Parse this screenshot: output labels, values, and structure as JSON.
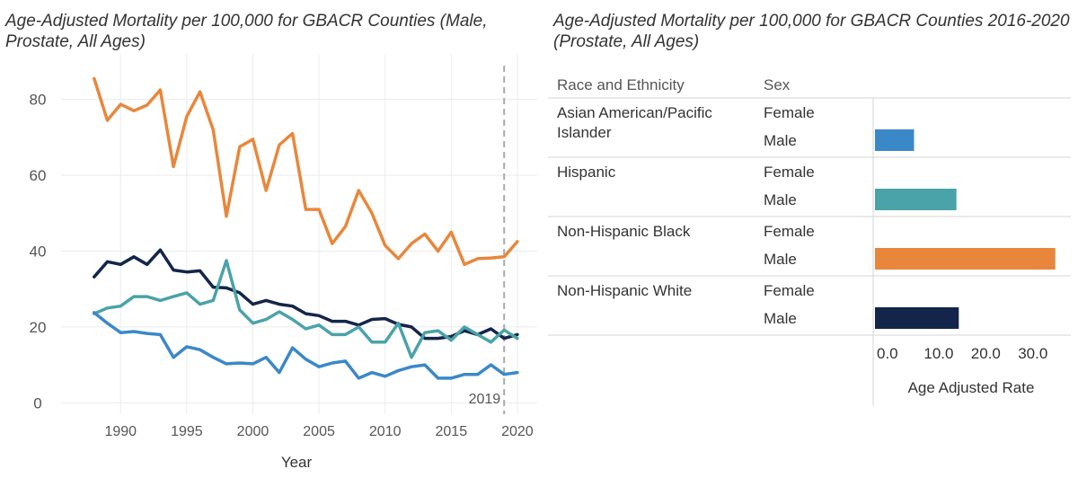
{
  "colors": {
    "asian_pi": "#3b88c8",
    "hispanic": "#4aa3a8",
    "black": "#e8873c",
    "white": "#13254a",
    "marker": "#aaaaaa",
    "grid": "#ececec"
  },
  "chart_data": [
    {
      "type": "line",
      "title": "Age-Adjusted Mortality per 100,000 for GBACR Counties (Male, Prostate, All Ages)",
      "xlabel": "Year",
      "ylabel": "",
      "xlim": [
        1985.5,
        2021.5
      ],
      "ylim": [
        -3,
        92
      ],
      "xticks": [
        1990,
        1995,
        2000,
        2005,
        2010,
        2015,
        2020
      ],
      "yticks": [
        0,
        20,
        40,
        60,
        80
      ],
      "marker": {
        "x": 2019,
        "label": "2019"
      },
      "x": [
        1988,
        1989,
        1990,
        1991,
        1992,
        1993,
        1994,
        1995,
        1996,
        1997,
        1998,
        1999,
        2000,
        2001,
        2002,
        2003,
        2004,
        2005,
        2006,
        2007,
        2008,
        2009,
        2010,
        2011,
        2012,
        2013,
        2014,
        2015,
        2016,
        2017,
        2018,
        2019,
        2020
      ],
      "series": [
        {
          "name": "Non-Hispanic Black",
          "color_key": "black",
          "values": [
            85.5,
            74.5,
            78.7,
            77.0,
            78.5,
            82.5,
            62.3,
            75.5,
            82.0,
            72.0,
            49.2,
            67.5,
            69.5,
            56.0,
            68.0,
            71.0,
            51.0,
            51.0,
            42.0,
            46.5,
            56.0,
            50.0,
            41.5,
            38.0,
            42.0,
            44.5,
            40.0,
            45.0,
            36.5,
            38.0,
            38.2,
            38.5,
            42.5
          ]
        },
        {
          "name": "Non-Hispanic White",
          "color_key": "white",
          "values": [
            33.2,
            37.2,
            36.5,
            38.5,
            36.5,
            40.3,
            35.0,
            34.5,
            34.8,
            30.5,
            30.3,
            29.0,
            26.0,
            27.0,
            26.0,
            25.5,
            23.5,
            23.0,
            21.5,
            21.5,
            20.5,
            22.0,
            22.2,
            20.7,
            20.0,
            17.0,
            17.0,
            17.5,
            19.0,
            18.0,
            19.5,
            17.0,
            18.0
          ]
        },
        {
          "name": "Hispanic",
          "color_key": "hispanic",
          "values": [
            23.5,
            25.0,
            25.5,
            28.0,
            28.0,
            27.0,
            28.0,
            29.0,
            26.0,
            27.0,
            37.5,
            24.5,
            21.0,
            22.0,
            24.0,
            22.0,
            19.5,
            20.5,
            18.0,
            18.0,
            20.0,
            16.0,
            16.0,
            21.0,
            12.0,
            18.5,
            19.0,
            16.5,
            20.0,
            18.0,
            16.0,
            19.2,
            17.0
          ]
        },
        {
          "name": "Asian American/Pacific Islander",
          "color_key": "asian_pi",
          "values": [
            23.8,
            21.0,
            18.5,
            18.8,
            18.3,
            18.0,
            12.0,
            14.8,
            14.0,
            12.0,
            10.3,
            10.5,
            10.3,
            12.0,
            8.0,
            14.5,
            11.5,
            9.5,
            10.5,
            11.0,
            6.5,
            8.0,
            7.0,
            8.5,
            9.5,
            10.0,
            6.5,
            6.5,
            7.5,
            7.5,
            10.0,
            7.5,
            8.0
          ]
        }
      ]
    },
    {
      "type": "bar",
      "title": "Age-Adjusted Mortality per 100,000 for GBACR Counties 2016-2020 (Prostate, All Ages)",
      "xlabel": "Age Adjusted Rate",
      "xlim": [
        0,
        39.5
      ],
      "xticks": [
        0,
        10,
        20,
        30
      ],
      "xtick_labels": [
        "0.0",
        "10.0",
        "20.0",
        "30.0"
      ],
      "columns": [
        "Race and Ethnicity",
        "Sex"
      ],
      "groups": [
        {
          "name": "Asian American/Pacific Islander",
          "color_key": "asian_pi",
          "rows": [
            {
              "sex": "Female",
              "value": null
            },
            {
              "sex": "Male",
              "value": 8.3
            }
          ]
        },
        {
          "name": "Hispanic",
          "color_key": "hispanic",
          "rows": [
            {
              "sex": "Female",
              "value": null
            },
            {
              "sex": "Male",
              "value": 17.3
            }
          ]
        },
        {
          "name": "Non-Hispanic Black",
          "color_key": "black",
          "rows": [
            {
              "sex": "Female",
              "value": null
            },
            {
              "sex": "Male",
              "value": 38.3
            }
          ]
        },
        {
          "name": "Non-Hispanic White",
          "color_key": "white",
          "rows": [
            {
              "sex": "Female",
              "value": null
            },
            {
              "sex": "Male",
              "value": 17.8
            }
          ]
        }
      ]
    }
  ]
}
